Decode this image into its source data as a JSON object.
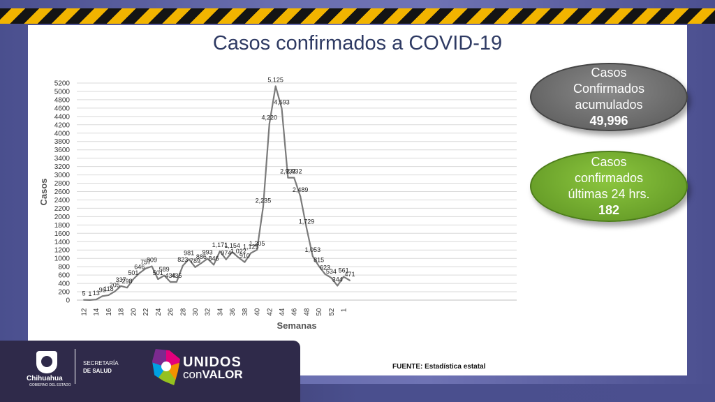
{
  "title": "Casos confirmados a COVID-19",
  "chart_data": {
    "type": "line",
    "title": "",
    "xlabel": "Semanas",
    "ylabel": "Casos",
    "ylim": [
      0,
      5200
    ],
    "ytick_step": 200,
    "yticks": [
      "0",
      "200",
      "400",
      "600",
      "800",
      "1000",
      "1200",
      "1400",
      "1600",
      "1800",
      "2000",
      "2200",
      "2400",
      "2600",
      "2800",
      "3000",
      "3200",
      "3400",
      "3600",
      "3800",
      "4000",
      "4200",
      "4400",
      "4600",
      "4800",
      "5000",
      "5200"
    ],
    "x": [
      "12",
      "13",
      "14",
      "15",
      "16",
      "17",
      "18",
      "19",
      "20",
      "21",
      "22",
      "23",
      "24",
      "25",
      "26",
      "27",
      "28",
      "29",
      "30",
      "31",
      "32",
      "33",
      "34",
      "35",
      "36",
      "37",
      "38",
      "39",
      "40",
      "41",
      "42",
      "43",
      "44",
      "45",
      "46",
      "47",
      "48",
      "49",
      "50",
      "51",
      "52",
      "53",
      "1",
      "2"
    ],
    "xtick_labels": [
      "12",
      "14",
      "16",
      "18",
      "20",
      "22",
      "24",
      "26",
      "28",
      "30",
      "32",
      "34",
      "36",
      "38",
      "40",
      "42",
      "44",
      "46",
      "48",
      "50",
      "52",
      "1"
    ],
    "values": [
      5,
      1,
      13,
      96,
      118,
      205,
      337,
      298,
      501,
      646,
      757,
      809,
      501,
      589,
      434,
      435,
      823,
      981,
      789,
      886,
      993,
      846,
      1171,
      974,
      1154,
      1022,
      910,
      1125,
      1205,
      2235,
      4220,
      5125,
      4593,
      2932,
      2932,
      2489,
      1729,
      1053,
      815,
      623,
      534,
      344,
      561,
      471
    ],
    "data_labels": [
      "5",
      "1",
      "13",
      "96",
      "118",
      "205",
      "337",
      "298",
      "501",
      "646",
      "757",
      "809",
      "501",
      "589",
      "434",
      "435",
      "823",
      "981",
      "789",
      "886",
      "993",
      "846",
      "1,171",
      "974",
      "1,154",
      "1,022",
      "910",
      "1,125",
      "1,205",
      "2,235",
      "4,220",
      "5,125",
      "4,593",
      "2,932",
      "2,932",
      "2,489",
      "1,729",
      "1,053",
      "815",
      "623",
      "534",
      "344",
      "561",
      "471"
    ],
    "grid": true,
    "line_color": "#7a7a7a"
  },
  "stats": {
    "accumulated": {
      "label_lines": [
        "Casos",
        "Confirmados",
        "acumulados"
      ],
      "value": "49,996",
      "color": "#666666"
    },
    "last24": {
      "label_lines": [
        "Casos",
        "confirmados",
        "últimas 24 hrs."
      ],
      "value": "182",
      "color": "#6aa12a"
    }
  },
  "source": "FUENTE: Estadística estatal",
  "footer": {
    "gov_name": "Chihuahua",
    "gov_sub": "GOBIERNO DEL ESTADO",
    "dept_line1": "SECRETARÍA",
    "dept_line2": "DE SALUD",
    "brand_line1": "UNIDOS",
    "brand_line2a": "con",
    "brand_line2b": "VALOR"
  },
  "colors": {
    "title": "#2e3a63",
    "hazard_dark": "#141414",
    "hazard_yellow": "#f2b400",
    "footer_band": "#2f2a4a"
  }
}
